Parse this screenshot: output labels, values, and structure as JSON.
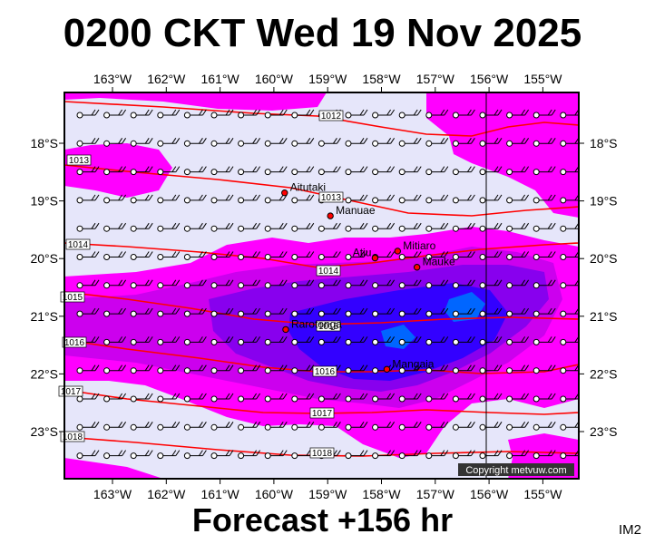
{
  "title": "0200 CKT Wed 19 Nov 2025",
  "footer": "Forecast +156 hr",
  "image_code": "IM2",
  "copyright": "Copyright metvuw.com",
  "longitude_labels": [
    "163°W",
    "162°W",
    "161°W",
    "160°W",
    "159°W",
    "158°W",
    "157°W",
    "156°W",
    "155°W"
  ],
  "latitude_labels": [
    "18°S",
    "19°S",
    "20°S",
    "21°S",
    "22°S",
    "23°S"
  ],
  "places": [
    {
      "name": "Aitutaki",
      "lon": -159.8,
      "lat": -18.86
    },
    {
      "name": "Manuae",
      "lon": -158.95,
      "lat": -19.26
    },
    {
      "name": "Mitiaro",
      "lon": -157.7,
      "lat": -19.87
    },
    {
      "name": "Atiu",
      "lon": -158.12,
      "lat": -19.99
    },
    {
      "name": "Mauke",
      "lon": -157.34,
      "lat": -20.15
    },
    {
      "name": "Rarotonga",
      "lon": -159.78,
      "lat": -21.23
    },
    {
      "name": "Mangaia",
      "lon": -157.9,
      "lat": -21.92
    }
  ],
  "isobar_labels": [
    "1012",
    "1013",
    "1013",
    "1014",
    "1014",
    "1015",
    "1016",
    "1016",
    "1016",
    "1017",
    "1017",
    "1018",
    "1018"
  ],
  "colors": {
    "background": "#e6e6fa",
    "magenta": "#ff00ff",
    "violet": "#cc00ee",
    "purple": "#8800ee",
    "blue": "#3300ff",
    "light_blue": "#0066ff",
    "isobar": "#ff0000",
    "place_dot": "#ff0000"
  }
}
